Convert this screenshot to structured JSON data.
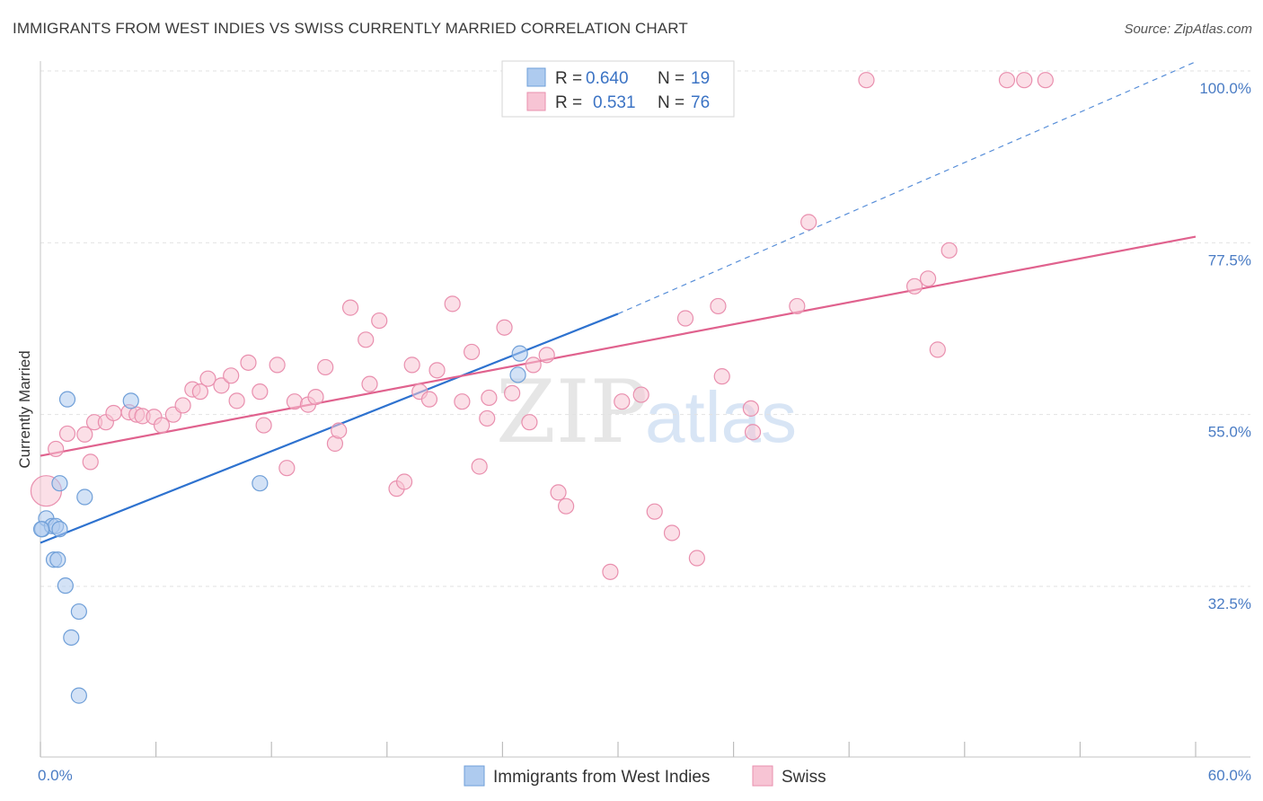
{
  "title": "IMMIGRANTS FROM WEST INDIES VS SWISS CURRENTLY MARRIED CORRELATION CHART",
  "source": "Source: ZipAtlas.com",
  "watermark": {
    "zip": "ZIP",
    "atlas": "atlas"
  },
  "colors": {
    "blue_fill": "#aecbef",
    "blue_stroke": "#6f9fd8",
    "blue_line": "#2e72cf",
    "pink_fill": "#f7c4d4",
    "pink_stroke": "#e98fae",
    "pink_line": "#e0628e",
    "tick_label": "#4a7cc4",
    "grid": "#e2e2e2"
  },
  "legend": {
    "rows": [
      {
        "r_label": "R =",
        "r_value": "0.640",
        "n_label": "N =",
        "n_value": "19"
      },
      {
        "r_label": "R =",
        "r_value": "0.531",
        "n_label": "N =",
        "n_value": "76"
      }
    ]
  },
  "chart_data": {
    "type": "scatter",
    "title": "IMMIGRANTS FROM WEST INDIES VS SWISS CURRENTLY MARRIED CORRELATION CHART",
    "xlabel": "",
    "ylabel": "Currently Married",
    "xlim": [
      0,
      60
    ],
    "ylim": [
      10,
      103
    ],
    "x_tick_labels": [
      "0.0%",
      "60.0%"
    ],
    "y_ticks": [
      32.5,
      55.0,
      77.5,
      100.0
    ],
    "y_tick_labels": [
      "32.5%",
      "55.0%",
      "77.5%",
      "100.0%"
    ],
    "grid": true,
    "legend_position": "top-center",
    "series": [
      {
        "name": "Immigrants from West Indies",
        "color": "#aecbef",
        "points": [
          [
            0.1,
            40.0
          ],
          [
            0.3,
            41.4
          ],
          [
            0.6,
            40.4
          ],
          [
            0.8,
            40.4
          ],
          [
            1.0,
            46.0
          ],
          [
            1.0,
            40.0
          ],
          [
            0.7,
            36.0
          ],
          [
            0.9,
            36.0
          ],
          [
            1.3,
            32.6
          ],
          [
            1.4,
            57.0
          ],
          [
            1.6,
            25.8
          ],
          [
            2.0,
            29.2
          ],
          [
            2.3,
            44.2
          ],
          [
            2.0,
            18.2
          ],
          [
            4.7,
            56.8
          ],
          [
            11.4,
            46.0
          ],
          [
            24.8,
            60.2
          ],
          [
            24.9,
            63.0
          ],
          [
            0.05,
            40.0
          ]
        ],
        "trendline": {
          "x": [
            0,
            30
          ],
          "y": [
            38.2,
            68.2
          ],
          "dashed_extension": {
            "x": [
              30,
              60
            ],
            "y": [
              68.2,
              101.2
            ]
          }
        }
      },
      {
        "name": "Swiss",
        "color": "#f7c4d4",
        "points": [
          [
            0.3,
            45.0
          ],
          [
            0.8,
            50.5
          ],
          [
            1.4,
            52.5
          ],
          [
            2.3,
            52.4
          ],
          [
            2.8,
            54.0
          ],
          [
            3.4,
            54.0
          ],
          [
            3.8,
            55.2
          ],
          [
            4.6,
            55.3
          ],
          [
            5.0,
            55.0
          ],
          [
            5.3,
            54.8
          ],
          [
            5.9,
            54.7
          ],
          [
            6.3,
            53.6
          ],
          [
            6.9,
            55.0
          ],
          [
            7.4,
            56.2
          ],
          [
            7.9,
            58.3
          ],
          [
            8.3,
            58.0
          ],
          [
            8.7,
            59.7
          ],
          [
            9.4,
            58.8
          ],
          [
            9.9,
            60.1
          ],
          [
            10.2,
            56.8
          ],
          [
            10.8,
            61.8
          ],
          [
            11.4,
            58.0
          ],
          [
            11.6,
            53.6
          ],
          [
            12.3,
            61.5
          ],
          [
            12.8,
            48.0
          ],
          [
            13.2,
            56.7
          ],
          [
            13.9,
            56.3
          ],
          [
            14.3,
            57.3
          ],
          [
            14.8,
            61.2
          ],
          [
            15.3,
            51.2
          ],
          [
            15.5,
            52.9
          ],
          [
            16.1,
            69.0
          ],
          [
            16.9,
            64.8
          ],
          [
            17.1,
            59.0
          ],
          [
            17.6,
            67.3
          ],
          [
            18.5,
            45.3
          ],
          [
            18.9,
            46.2
          ],
          [
            19.3,
            61.5
          ],
          [
            19.7,
            58.0
          ],
          [
            20.6,
            60.8
          ],
          [
            21.4,
            69.5
          ],
          [
            21.9,
            56.7
          ],
          [
            22.4,
            63.2
          ],
          [
            22.8,
            48.2
          ],
          [
            23.3,
            57.2
          ],
          [
            23.2,
            54.5
          ],
          [
            24.1,
            66.4
          ],
          [
            24.5,
            57.8
          ],
          [
            25.4,
            54.0
          ],
          [
            25.6,
            61.5
          ],
          [
            26.3,
            62.8
          ],
          [
            26.9,
            44.8
          ],
          [
            27.3,
            43.0
          ],
          [
            29.6,
            34.4
          ],
          [
            30.2,
            56.7
          ],
          [
            31.2,
            57.6
          ],
          [
            31.9,
            42.3
          ],
          [
            32.8,
            39.5
          ],
          [
            33.5,
            67.6
          ],
          [
            34.1,
            36.2
          ],
          [
            35.2,
            69.2
          ],
          [
            35.4,
            60.0
          ],
          [
            36.9,
            55.8
          ],
          [
            37.0,
            52.7
          ],
          [
            39.3,
            69.2
          ],
          [
            39.9,
            80.2
          ],
          [
            42.9,
            98.8
          ],
          [
            45.4,
            71.8
          ],
          [
            46.1,
            72.8
          ],
          [
            46.6,
            63.5
          ],
          [
            47.2,
            76.5
          ],
          [
            50.2,
            98.8
          ],
          [
            51.1,
            98.8
          ],
          [
            52.2,
            98.8
          ],
          [
            20.2,
            57.0
          ],
          [
            2.6,
            48.8
          ]
        ],
        "trendline": {
          "x": [
            0,
            60
          ],
          "y": [
            49.6,
            78.3
          ]
        }
      }
    ]
  },
  "bottom_legend": [
    {
      "label": "Immigrants from West Indies"
    },
    {
      "label": "Swiss"
    }
  ]
}
